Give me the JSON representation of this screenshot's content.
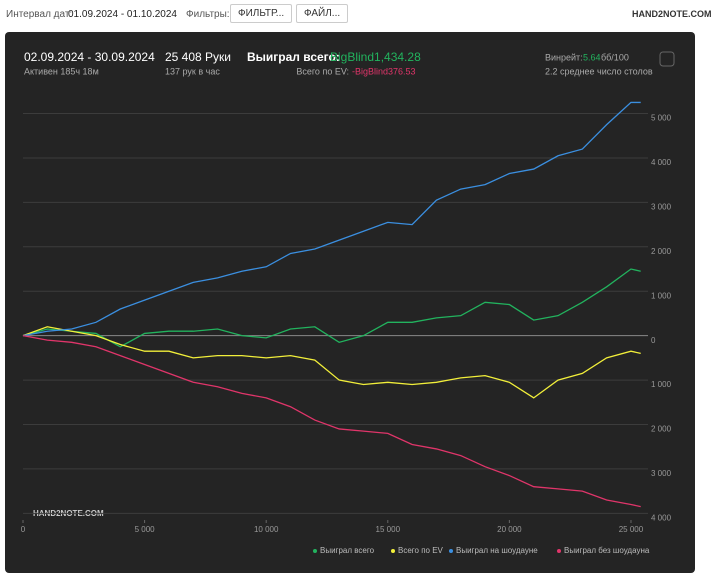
{
  "header": {
    "date_label": "Интервал дат:",
    "date_range": "01.09.2024 - 01.10.2024",
    "filters_label": "Фильтры:",
    "filter_button": "ФИЛЬТР...",
    "file_button": "ФАЙЛ...",
    "logo": "HAND2NOTE.COM"
  },
  "stats": {
    "period": "02.09.2024 - 30.09.2024",
    "active": "Активен 185ч 18м",
    "hands": "25 408 Руки",
    "hands_per_hour": "137 рук в час",
    "won_label": "Выиграл всего:",
    "won_value": "BigBlind1,434.28",
    "ev_label": "Всего по EV:",
    "ev_value": "-BigBlind376.53",
    "winrate_label": "Винрейт:",
    "winrate_value": "5.64",
    "winrate_unit": "бб/100",
    "tables": "2.2 среднее число столов"
  },
  "watermark": "HAND2NOTE.COM",
  "chart_data": {
    "type": "line",
    "x": [
      0,
      1000,
      2000,
      3000,
      4000,
      5000,
      6000,
      7000,
      8000,
      9000,
      10000,
      11000,
      12000,
      13000,
      14000,
      15000,
      16000,
      17000,
      18000,
      19000,
      20000,
      21000,
      22000,
      23000,
      24000,
      25000,
      25400
    ],
    "series": [
      {
        "name": "Выиграл всего",
        "color": "#22b35e",
        "values": [
          0,
          150,
          100,
          50,
          -250,
          50,
          100,
          100,
          150,
          0,
          -50,
          150,
          200,
          -150,
          0,
          300,
          300,
          400,
          450,
          750,
          700,
          350,
          450,
          750,
          1100,
          1500,
          1450
        ]
      },
      {
        "name": "Всего по EV",
        "color": "#f2ef3a",
        "values": [
          0,
          200,
          100,
          0,
          -200,
          -350,
          -350,
          -500,
          -450,
          -450,
          -500,
          -450,
          -550,
          -1000,
          -1100,
          -1050,
          -1100,
          -1050,
          -950,
          -900,
          -1050,
          -1400,
          -1000,
          -850,
          -500,
          -350,
          -400
        ]
      },
      {
        "name": "Выиграл на шоудауне",
        "color": "#3b8fe0",
        "values": [
          0,
          100,
          150,
          300,
          600,
          800,
          1000,
          1200,
          1300,
          1450,
          1550,
          1850,
          1950,
          2150,
          2350,
          2550,
          2500,
          3050,
          3300,
          3400,
          3650,
          3750,
          4050,
          4200,
          4750,
          5250,
          5250
        ]
      },
      {
        "name": "Выиграл без шоудауна",
        "color": "#e0356a",
        "values": [
          0,
          -100,
          -150,
          -250,
          -450,
          -650,
          -850,
          -1050,
          -1150,
          -1300,
          -1400,
          -1600,
          -1900,
          -2100,
          -2150,
          -2200,
          -2450,
          -2550,
          -2700,
          -2950,
          -3150,
          -3400,
          -3450,
          -3500,
          -3700,
          -3800,
          -3850
        ]
      }
    ],
    "xlim": [
      0,
      25700
    ],
    "ylim": [
      -4150,
      5350
    ],
    "xticks": [
      0,
      {
        "value": 5000,
        "label": "5 000"
      },
      {
        "value": 10000,
        "label": "10 000"
      },
      {
        "value": 15000,
        "label": "15 000"
      },
      {
        "value": 20000,
        "label": "20 000"
      },
      {
        "value": 25000,
        "label": "25 000"
      }
    ],
    "yticks": [
      {
        "value": -4000,
        "label": "4 000"
      },
      {
        "value": -3000,
        "label": "3 000"
      },
      {
        "value": -2000,
        "label": "2 000"
      },
      {
        "value": -1000,
        "label": "1 000"
      },
      0,
      {
        "value": 1000,
        "label": "1 000"
      },
      {
        "value": 2000,
        "label": "2 000"
      },
      {
        "value": 3000,
        "label": "3 000"
      },
      {
        "value": 4000,
        "label": "4 000"
      },
      {
        "value": 5000,
        "label": "5 000"
      }
    ],
    "grid": true
  }
}
